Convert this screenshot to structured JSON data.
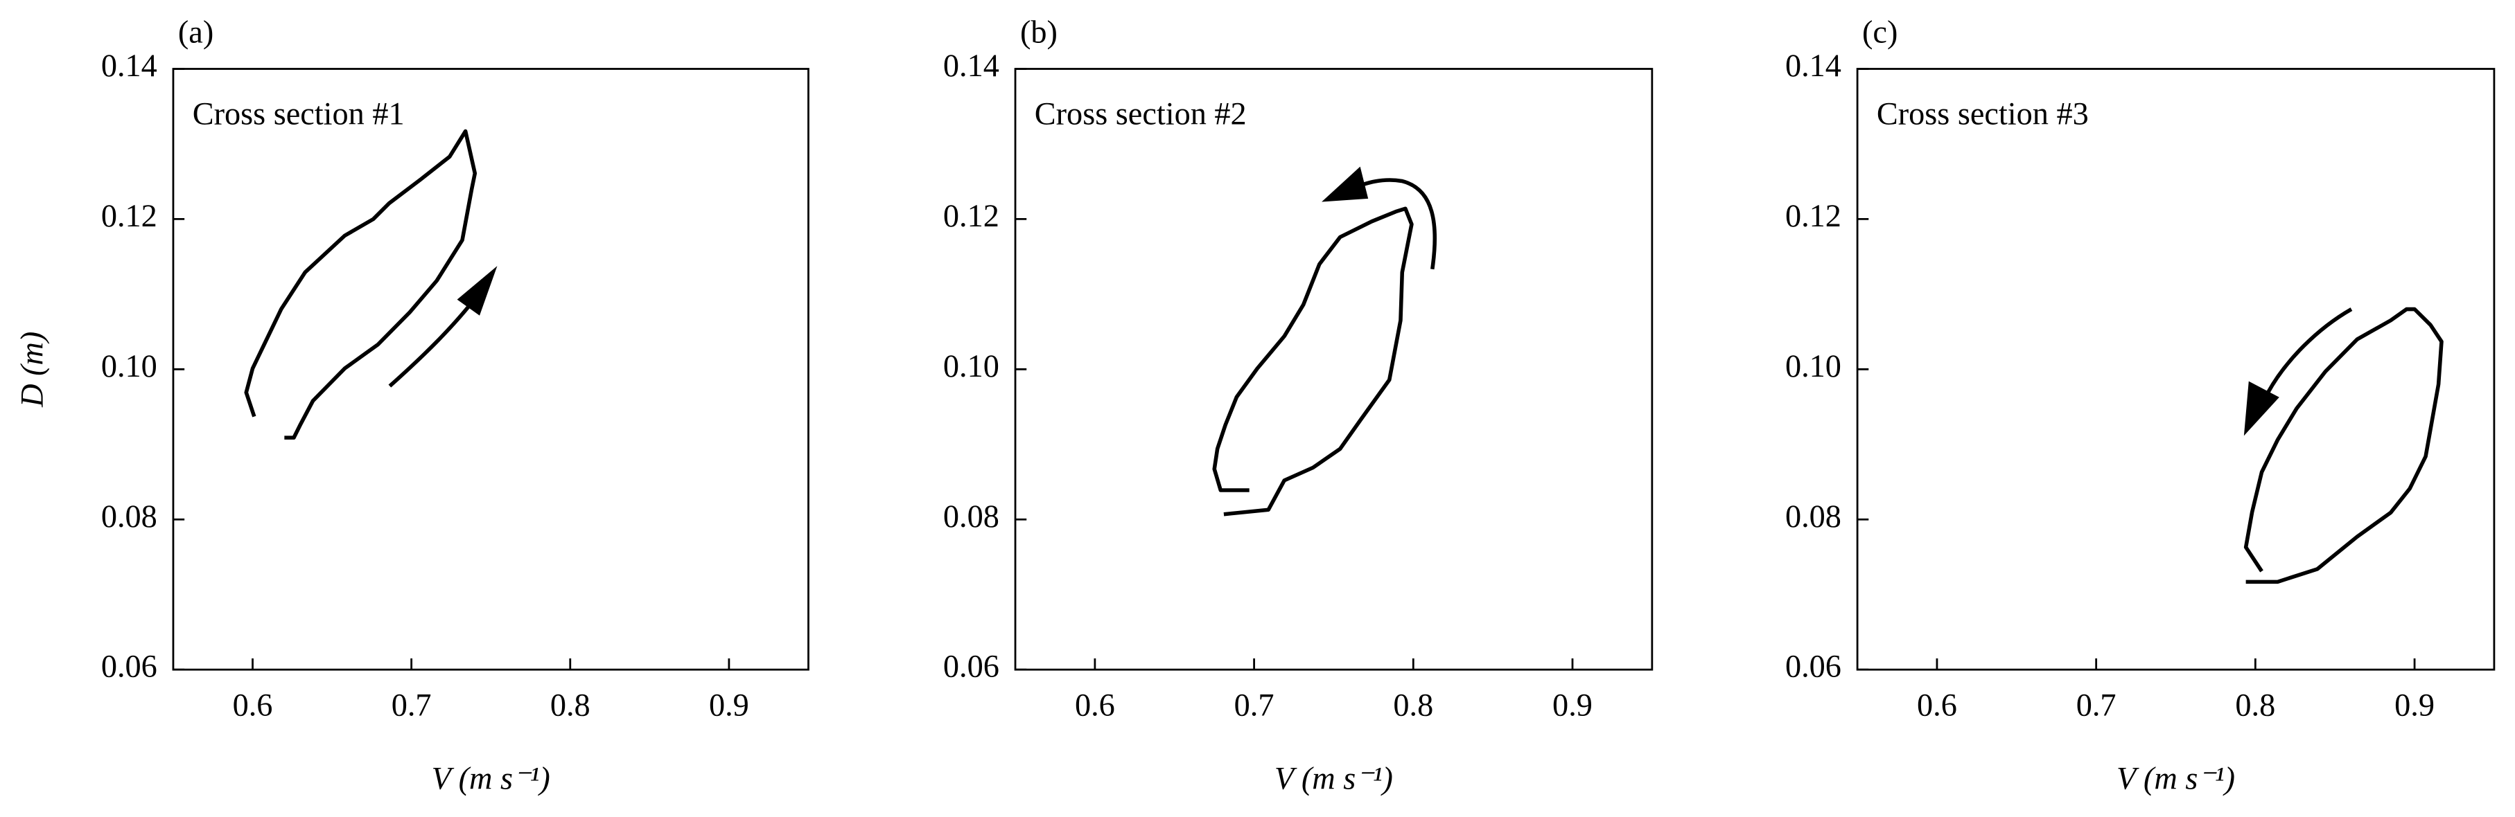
{
  "chart_data": [
    {
      "type": "line",
      "panel_label": "(a)",
      "annotation": "Cross section #1",
      "x_label": "V (m s⁻¹)",
      "y_label": "D (m)",
      "xlim": [
        0.55,
        0.95
      ],
      "ylim": [
        0.06,
        0.14
      ],
      "xticks": [
        0.6,
        0.7,
        0.8,
        0.9
      ],
      "yticks": [
        0.06,
        0.08,
        {
          "value": 0.1,
          "label": "0.10"
        },
        0.12,
        0.14
      ],
      "color": "#000000",
      "x": [
        0.601,
        0.596,
        0.6,
        0.618,
        0.633,
        0.658,
        0.676,
        0.686,
        0.706,
        0.724,
        0.734,
        0.74,
        0.738,
        0.732,
        0.716,
        0.699,
        0.679,
        0.658,
        0.638,
        0.63,
        0.626,
        0.62
      ],
      "values": [
        0.0937,
        0.0969,
        0.1001,
        0.108,
        0.1129,
        0.1178,
        0.12,
        0.1221,
        0.1253,
        0.1283,
        0.1317,
        0.1261,
        0.124,
        0.1172,
        0.1118,
        0.1076,
        0.1033,
        0.1001,
        0.0958,
        0.0926,
        0.0909,
        0.0909
      ]
    },
    {
      "type": "line",
      "panel_label": "(b)",
      "annotation": "Cross section #2",
      "x_label": "V (m s⁻¹)",
      "xlim": [
        0.55,
        0.95
      ],
      "ylim": [
        0.06,
        0.14
      ],
      "xticks": [
        0.6,
        0.7,
        0.8,
        0.9
      ],
      "yticks": [
        0.06,
        0.08,
        {
          "value": 0.1,
          "label": "0.10"
        },
        0.12,
        0.14
      ],
      "color": "#000000",
      "x": [
        0.697,
        0.679,
        0.675,
        0.677,
        0.682,
        0.689,
        0.702,
        0.719,
        0.731,
        0.741,
        0.754,
        0.774,
        0.789,
        0.795,
        0.799,
        0.793,
        0.792,
        0.785,
        0.767,
        0.754,
        0.737,
        0.719,
        0.709,
        0.681
      ],
      "values": [
        0.0839,
        0.0839,
        0.0867,
        0.0894,
        0.0926,
        0.0963,
        0.1001,
        0.1044,
        0.1086,
        0.114,
        0.1176,
        0.1197,
        0.121,
        0.1214,
        0.1193,
        0.1129,
        0.1065,
        0.0986,
        0.0933,
        0.0894,
        0.0869,
        0.0852,
        0.0813,
        0.0807
      ]
    },
    {
      "type": "line",
      "panel_label": "(c)",
      "annotation": "Cross section #3",
      "x_label": "V (m s⁻¹)",
      "xlim": [
        0.55,
        0.95
      ],
      "ylim": [
        0.06,
        0.14
      ],
      "xticks": [
        0.6,
        0.7,
        0.8,
        0.9
      ],
      "yticks": [
        0.06,
        0.08,
        {
          "value": 0.1,
          "label": "0.10"
        },
        0.12,
        0.14
      ],
      "color": "#000000",
      "x": [
        0.804,
        0.794,
        0.798,
        0.804,
        0.814,
        0.826,
        0.844,
        0.864,
        0.885,
        0.895,
        0.9,
        0.91,
        0.917,
        0.915,
        0.907,
        0.897,
        0.885,
        0.864,
        0.839,
        0.814,
        0.794
      ],
      "values": [
        0.0731,
        0.0763,
        0.081,
        0.0863,
        0.0906,
        0.0948,
        0.0997,
        0.104,
        0.1065,
        0.108,
        0.108,
        0.1059,
        0.1037,
        0.098,
        0.0884,
        0.0841,
        0.0809,
        0.0777,
        0.0734,
        0.0717,
        0.0717
      ]
    }
  ]
}
